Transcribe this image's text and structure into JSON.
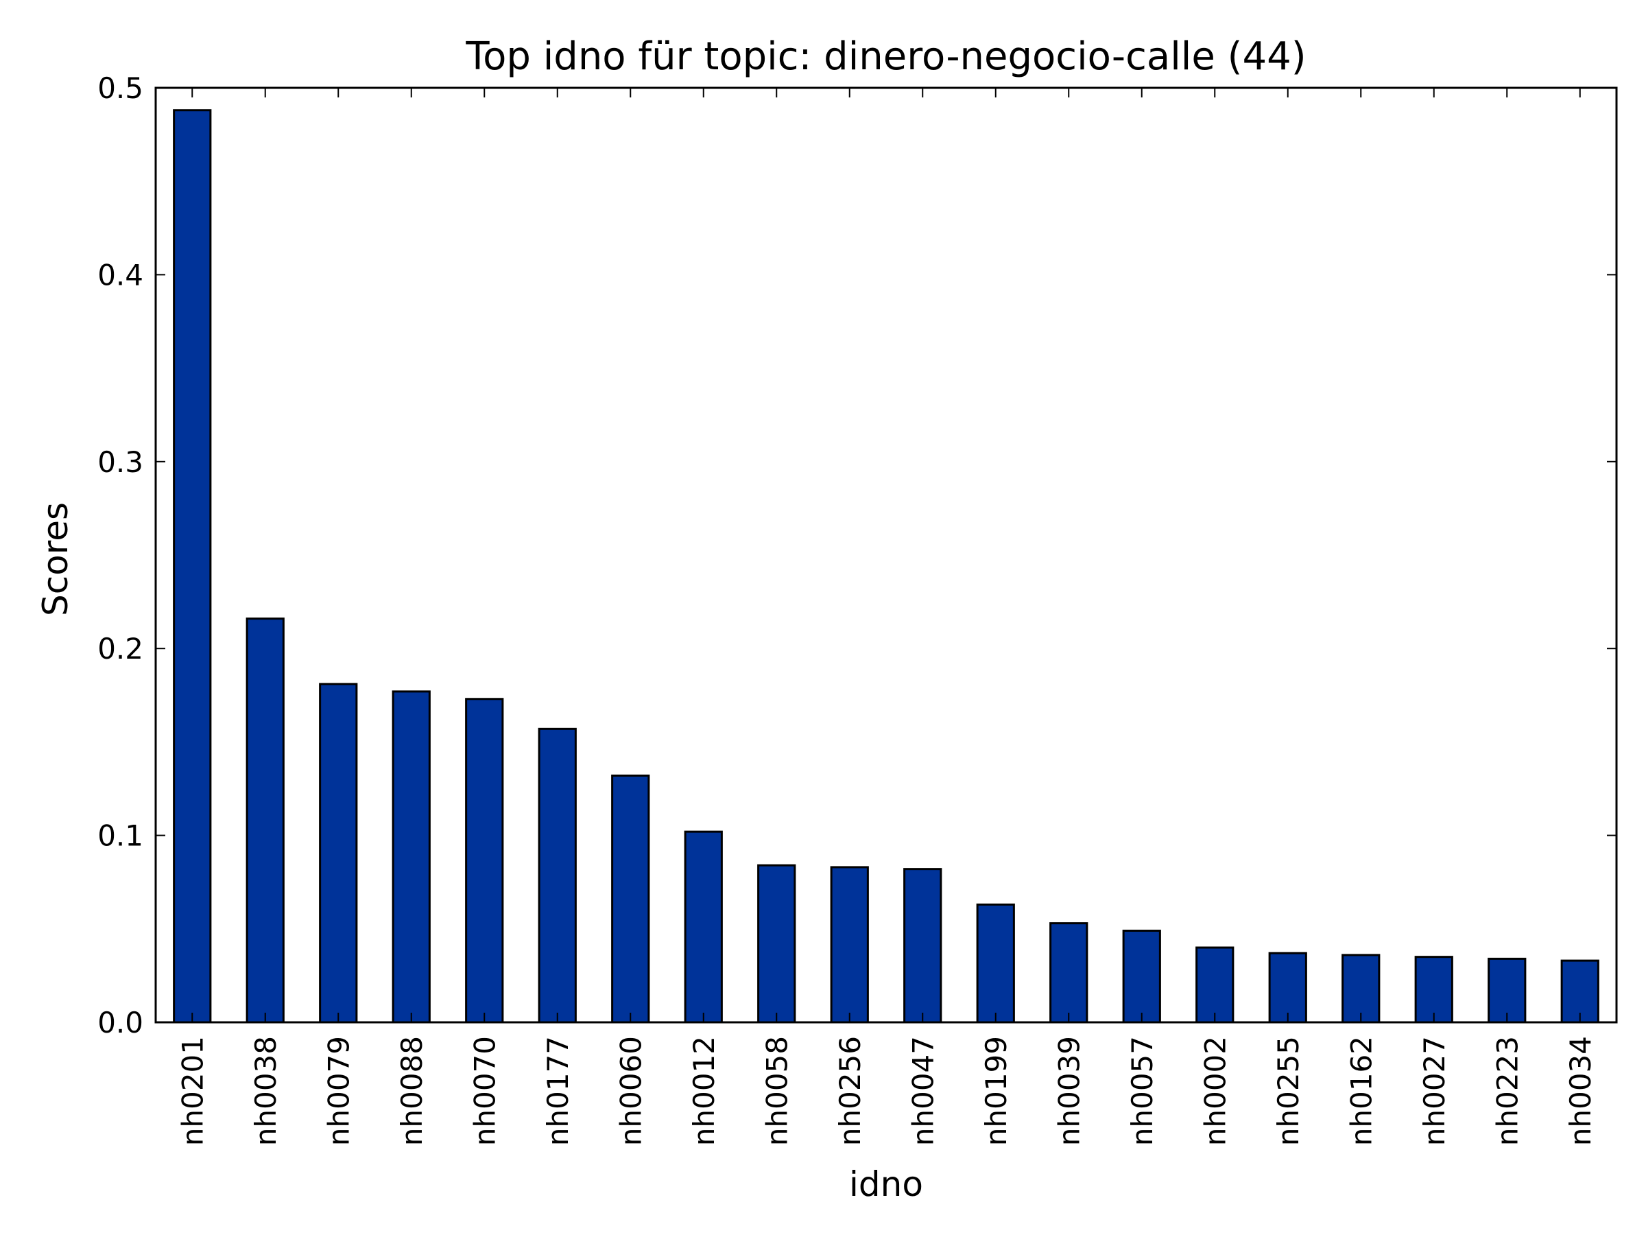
{
  "chart_data": {
    "type": "bar",
    "title": "Top idno für topic: dinero-negocio-calle (44)",
    "xlabel": "idno",
    "ylabel": "Scores",
    "ylim": [
      0,
      0.5
    ],
    "yticks": [
      "0.0",
      "0.1",
      "0.2",
      "0.3",
      "0.4",
      "0.5"
    ],
    "grid": false,
    "legend": "none",
    "bar_color": "#003399",
    "edge_color": "#000000",
    "categories": [
      "nh0201",
      "nh0038",
      "nh0079",
      "nh0088",
      "nh0070",
      "nh0177",
      "nh0060",
      "nh0012",
      "nh0058",
      "nh0256",
      "nh0047",
      "nh0199",
      "nh0039",
      "nh0057",
      "nh0002",
      "nh0255",
      "nh0162",
      "nh0027",
      "nh0223",
      "nh0034"
    ],
    "values": [
      0.488,
      0.216,
      0.181,
      0.177,
      0.173,
      0.157,
      0.132,
      0.102,
      0.084,
      0.083,
      0.082,
      0.063,
      0.053,
      0.049,
      0.04,
      0.037,
      0.036,
      0.035,
      0.034,
      0.033
    ]
  }
}
